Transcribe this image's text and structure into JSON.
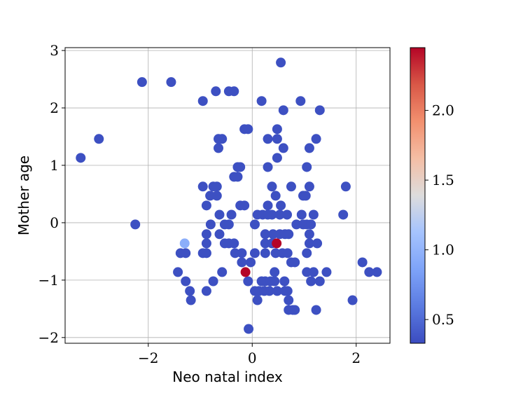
{
  "chart_data": {
    "type": "scatter",
    "xlabel": "Neo natal index",
    "ylabel": "Mother age",
    "xlim": [
      -3.6,
      2.65
    ],
    "ylim": [
      -2.1,
      3.05
    ],
    "x_ticks": [
      -2,
      0,
      2
    ],
    "x_tick_labels": [
      "−2",
      "0",
      "2"
    ],
    "y_ticks": [
      -2,
      -1,
      0,
      1,
      2,
      3
    ],
    "y_tick_labels": [
      "−2",
      "−1",
      "0",
      "1",
      "2",
      "3"
    ],
    "grid": true,
    "colorbar": {
      "colormap": "coolwarm",
      "range": [
        0.33,
        2.45
      ],
      "ticks": [
        0.5,
        1.0,
        1.5,
        2.0
      ],
      "tick_labels": [
        "0.5",
        "1.0",
        "1.5",
        "2.0"
      ]
    },
    "points": [
      {
        "x": -3.3,
        "y": 1.13,
        "c": 0.35
      },
      {
        "x": -2.95,
        "y": 1.46,
        "c": 0.35
      },
      {
        "x": -2.25,
        "y": -0.03,
        "c": 0.35
      },
      {
        "x": -2.12,
        "y": 2.45,
        "c": 0.35
      },
      {
        "x": -1.56,
        "y": 2.45,
        "c": 0.35
      },
      {
        "x": -1.43,
        "y": -0.86,
        "c": 0.35
      },
      {
        "x": -1.38,
        "y": -0.53,
        "c": 0.35
      },
      {
        "x": -1.3,
        "y": -0.36,
        "c": 0.95
      },
      {
        "x": -1.28,
        "y": -0.53,
        "c": 0.35
      },
      {
        "x": -1.28,
        "y": -1.02,
        "c": 0.35
      },
      {
        "x": -1.2,
        "y": -1.19,
        "c": 0.35
      },
      {
        "x": -1.18,
        "y": -1.35,
        "c": 0.35
      },
      {
        "x": -0.95,
        "y": 2.12,
        "c": 0.35
      },
      {
        "x": -0.95,
        "y": 0.63,
        "c": 0.35
      },
      {
        "x": -0.95,
        "y": -0.53,
        "c": 0.35
      },
      {
        "x": -0.88,
        "y": 0.3,
        "c": 0.35
      },
      {
        "x": -0.88,
        "y": -0.2,
        "c": 0.35
      },
      {
        "x": -0.88,
        "y": -0.36,
        "c": 0.35
      },
      {
        "x": -0.88,
        "y": -0.53,
        "c": 0.35
      },
      {
        "x": -0.88,
        "y": -1.19,
        "c": 0.35
      },
      {
        "x": -0.81,
        "y": 0.47,
        "c": 0.35
      },
      {
        "x": -0.8,
        "y": -0.03,
        "c": 0.35
      },
      {
        "x": -0.75,
        "y": 0.63,
        "c": 0.35
      },
      {
        "x": -0.75,
        "y": -1.02,
        "c": 0.35
      },
      {
        "x": -0.7,
        "y": 2.29,
        "c": 0.35
      },
      {
        "x": -0.68,
        "y": 0.63,
        "c": 0.35
      },
      {
        "x": -0.68,
        "y": 0.47,
        "c": 0.35
      },
      {
        "x": -0.65,
        "y": 1.46,
        "c": 0.35
      },
      {
        "x": -0.65,
        "y": 1.3,
        "c": 0.35
      },
      {
        "x": -0.63,
        "y": 0.14,
        "c": 0.35
      },
      {
        "x": -0.63,
        "y": -0.2,
        "c": 0.35
      },
      {
        "x": -0.58,
        "y": 1.46,
        "c": 0.35
      },
      {
        "x": -0.58,
        "y": -0.86,
        "c": 0.35
      },
      {
        "x": -0.53,
        "y": -0.03,
        "c": 0.35
      },
      {
        "x": -0.53,
        "y": -0.36,
        "c": 0.35
      },
      {
        "x": -0.45,
        "y": 2.29,
        "c": 0.35
      },
      {
        "x": -0.45,
        "y": -0.03,
        "c": 0.35
      },
      {
        "x": -0.45,
        "y": -0.36,
        "c": 0.35
      },
      {
        "x": -0.4,
        "y": 0.14,
        "c": 0.35
      },
      {
        "x": -0.35,
        "y": 2.29,
        "c": 0.35
      },
      {
        "x": -0.35,
        "y": 0.8,
        "c": 0.35
      },
      {
        "x": -0.35,
        "y": -0.36,
        "c": 0.35
      },
      {
        "x": -0.33,
        "y": -0.53,
        "c": 0.35
      },
      {
        "x": -0.28,
        "y": 0.97,
        "c": 0.35
      },
      {
        "x": -0.28,
        "y": 0.8,
        "c": 0.35
      },
      {
        "x": -0.23,
        "y": 0.97,
        "c": 0.35
      },
      {
        "x": -0.23,
        "y": 0.3,
        "c": 0.35
      },
      {
        "x": -0.2,
        "y": -0.53,
        "c": 0.35
      },
      {
        "x": -0.2,
        "y": -0.69,
        "c": 0.35
      },
      {
        "x": -0.15,
        "y": 1.63,
        "c": 0.35
      },
      {
        "x": -0.15,
        "y": 0.3,
        "c": 0.35
      },
      {
        "x": -0.13,
        "y": -0.86,
        "c": 2.45
      },
      {
        "x": -0.08,
        "y": 1.63,
        "c": 0.35
      },
      {
        "x": -0.08,
        "y": -1.02,
        "c": 0.35
      },
      {
        "x": -0.07,
        "y": -1.85,
        "c": 0.35
      },
      {
        "x": -0.03,
        "y": -0.69,
        "c": 0.35
      },
      {
        "x": 0.05,
        "y": -0.03,
        "c": 0.35
      },
      {
        "x": 0.05,
        "y": -0.53,
        "c": 0.35
      },
      {
        "x": 0.05,
        "y": -1.19,
        "c": 0.35
      },
      {
        "x": 0.1,
        "y": 0.14,
        "c": 0.35
      },
      {
        "x": 0.1,
        "y": -1.35,
        "c": 0.35
      },
      {
        "x": 0.13,
        "y": -1.19,
        "c": 0.35
      },
      {
        "x": 0.18,
        "y": 2.12,
        "c": 0.35
      },
      {
        "x": 0.18,
        "y": -1.02,
        "c": 0.35
      },
      {
        "x": 0.2,
        "y": 0.14,
        "c": 0.35
      },
      {
        "x": 0.23,
        "y": -1.19,
        "c": 0.35
      },
      {
        "x": 0.25,
        "y": -0.2,
        "c": 0.35
      },
      {
        "x": 0.25,
        "y": -0.36,
        "c": 0.35
      },
      {
        "x": 0.25,
        "y": -0.53,
        "c": 0.35
      },
      {
        "x": 0.25,
        "y": -1.02,
        "c": 0.35
      },
      {
        "x": 0.3,
        "y": 1.46,
        "c": 0.35
      },
      {
        "x": 0.3,
        "y": 0.97,
        "c": 0.35
      },
      {
        "x": 0.3,
        "y": 0.3,
        "c": 0.35
      },
      {
        "x": 0.3,
        "y": 0.14,
        "c": 0.35
      },
      {
        "x": 0.33,
        "y": -1.19,
        "c": 0.35
      },
      {
        "x": 0.35,
        "y": -1.02,
        "c": 0.35
      },
      {
        "x": 0.38,
        "y": 0.63,
        "c": 0.35
      },
      {
        "x": 0.38,
        "y": 0.14,
        "c": 0.35
      },
      {
        "x": 0.38,
        "y": -0.36,
        "c": 0.35
      },
      {
        "x": 0.4,
        "y": -0.2,
        "c": 0.35
      },
      {
        "x": 0.43,
        "y": -1.02,
        "c": 0.35
      },
      {
        "x": 0.43,
        "y": -0.86,
        "c": 0.35
      },
      {
        "x": 0.45,
        "y": 0.47,
        "c": 0.35
      },
      {
        "x": 0.45,
        "y": -0.53,
        "c": 0.35
      },
      {
        "x": 0.47,
        "y": -0.36,
        "c": 2.45
      },
      {
        "x": 0.48,
        "y": 1.63,
        "c": 0.35
      },
      {
        "x": 0.48,
        "y": 1.46,
        "c": 0.35
      },
      {
        "x": 0.48,
        "y": 1.13,
        "c": 0.35
      },
      {
        "x": 0.48,
        "y": -1.19,
        "c": 0.35
      },
      {
        "x": 0.53,
        "y": 0.14,
        "c": 0.35
      },
      {
        "x": 0.53,
        "y": -0.2,
        "c": 0.35
      },
      {
        "x": 0.55,
        "y": 2.79,
        "c": 0.35
      },
      {
        "x": 0.55,
        "y": 0.3,
        "c": 0.35
      },
      {
        "x": 0.58,
        "y": -0.53,
        "c": 0.35
      },
      {
        "x": 0.6,
        "y": 1.96,
        "c": 0.35
      },
      {
        "x": 0.6,
        "y": 1.3,
        "c": 0.35
      },
      {
        "x": 0.62,
        "y": -1.02,
        "c": 0.35
      },
      {
        "x": 0.63,
        "y": -0.2,
        "c": 0.35
      },
      {
        "x": 0.63,
        "y": -1.19,
        "c": 0.35
      },
      {
        "x": 0.67,
        "y": 0.14,
        "c": 0.35
      },
      {
        "x": 0.68,
        "y": -0.53,
        "c": 0.35
      },
      {
        "x": 0.68,
        "y": -1.19,
        "c": 0.35
      },
      {
        "x": 0.7,
        "y": -0.2,
        "c": 0.35
      },
      {
        "x": 0.7,
        "y": -1.35,
        "c": 0.35
      },
      {
        "x": 0.7,
        "y": -1.52,
        "c": 0.35
      },
      {
        "x": 0.75,
        "y": 0.63,
        "c": 0.35
      },
      {
        "x": 0.75,
        "y": -0.69,
        "c": 0.35
      },
      {
        "x": 0.78,
        "y": -1.52,
        "c": 0.35
      },
      {
        "x": 0.82,
        "y": -0.69,
        "c": 0.35
      },
      {
        "x": 0.82,
        "y": -1.52,
        "c": 0.35
      },
      {
        "x": 0.85,
        "y": -0.03,
        "c": 0.35
      },
      {
        "x": 0.93,
        "y": 2.12,
        "c": 0.35
      },
      {
        "x": 0.95,
        "y": 0.14,
        "c": 0.35
      },
      {
        "x": 0.98,
        "y": 0.47,
        "c": 0.35
      },
      {
        "x": 0.98,
        "y": -0.03,
        "c": 0.35
      },
      {
        "x": 1.03,
        "y": 0.47,
        "c": 0.35
      },
      {
        "x": 1.05,
        "y": 0.97,
        "c": 0.35
      },
      {
        "x": 1.05,
        "y": -0.03,
        "c": 0.35
      },
      {
        "x": 1.05,
        "y": -0.53,
        "c": 0.35
      },
      {
        "x": 1.05,
        "y": -0.86,
        "c": 0.35
      },
      {
        "x": 1.1,
        "y": 1.3,
        "c": 0.35
      },
      {
        "x": 1.1,
        "y": 0.63,
        "c": 0.35
      },
      {
        "x": 1.1,
        "y": -0.2,
        "c": 0.35
      },
      {
        "x": 1.1,
        "y": -0.36,
        "c": 0.35
      },
      {
        "x": 1.13,
        "y": -0.03,
        "c": 0.35
      },
      {
        "x": 1.13,
        "y": -1.02,
        "c": 0.35
      },
      {
        "x": 1.18,
        "y": 0.14,
        "c": 0.35
      },
      {
        "x": 1.18,
        "y": -0.86,
        "c": 0.35
      },
      {
        "x": 1.23,
        "y": 1.46,
        "c": 0.35
      },
      {
        "x": 1.23,
        "y": -1.52,
        "c": 0.35
      },
      {
        "x": 1.25,
        "y": -0.36,
        "c": 0.35
      },
      {
        "x": 1.3,
        "y": 1.96,
        "c": 0.35
      },
      {
        "x": 1.3,
        "y": -1.02,
        "c": 0.35
      },
      {
        "x": 1.43,
        "y": -0.86,
        "c": 0.35
      },
      {
        "x": 1.75,
        "y": 0.14,
        "c": 0.35
      },
      {
        "x": 1.8,
        "y": 0.63,
        "c": 0.35
      },
      {
        "x": 1.93,
        "y": -1.35,
        "c": 0.35
      },
      {
        "x": 2.12,
        "y": -0.69,
        "c": 0.35
      },
      {
        "x": 2.25,
        "y": -0.86,
        "c": 0.35
      },
      {
        "x": 2.4,
        "y": -0.86,
        "c": 0.35
      }
    ]
  }
}
